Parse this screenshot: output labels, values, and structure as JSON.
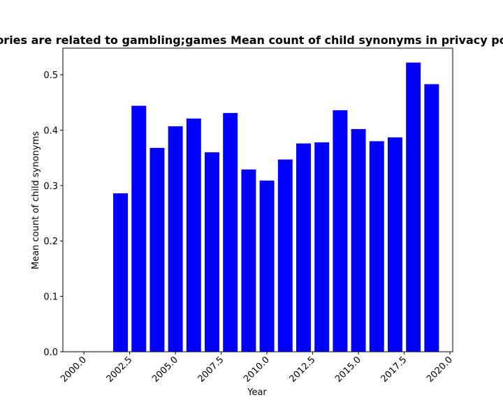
{
  "chart_data": {
    "type": "bar",
    "title": "ories are related to gambling;games Mean count of child synonyms in privacy po",
    "xlabel": "Year",
    "ylabel": "Mean count of child synonyms",
    "x": [
      2002,
      2003,
      2004,
      2005,
      2006,
      2007,
      2008,
      2009,
      2010,
      2011,
      2012,
      2013,
      2014,
      2015,
      2016,
      2017,
      2018,
      2019
    ],
    "values": [
      0.286,
      0.444,
      0.368,
      0.407,
      0.421,
      0.36,
      0.431,
      0.329,
      0.309,
      0.347,
      0.376,
      0.378,
      0.436,
      0.402,
      0.38,
      0.387,
      0.522,
      0.483
    ],
    "xlim": [
      1998.85,
      2020.15
    ],
    "ylim": [
      0,
      0.548
    ],
    "xticks": [
      2000.0,
      2002.5,
      2005.0,
      2007.5,
      2010.0,
      2012.5,
      2015.0,
      2017.5,
      2020.0
    ],
    "xtick_labels": [
      "2000.0",
      "2002.5",
      "2005.0",
      "2007.5",
      "2010.0",
      "2012.5",
      "2015.0",
      "2017.5",
      "2020.0"
    ],
    "yticks": [
      0.0,
      0.1,
      0.2,
      0.3,
      0.4,
      0.5
    ],
    "ytick_labels": [
      "0.0",
      "0.1",
      "0.2",
      "0.3",
      "0.4",
      "0.5"
    ],
    "bar_color": "#0000ff",
    "grid": false,
    "legend": "none"
  }
}
